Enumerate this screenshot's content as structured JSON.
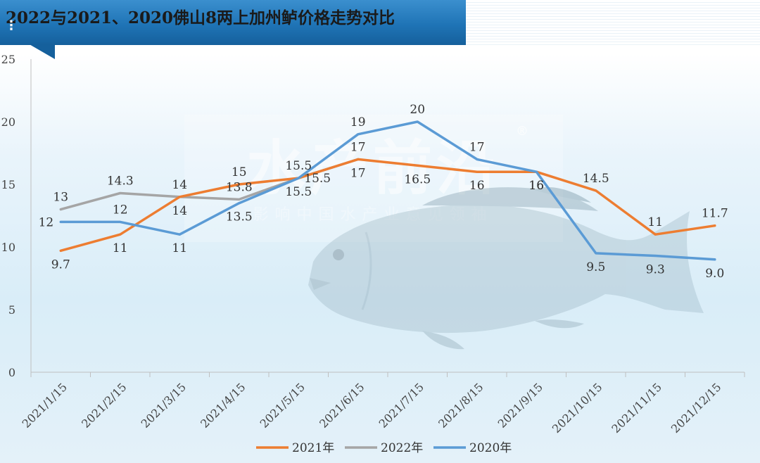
{
  "header": {
    "title": "2022与2021、2020佛山8两上加州鲈价格走势对比",
    "menu_glyph": "⋮"
  },
  "watermark": {
    "brand": "水产前沿",
    "registered": "®",
    "slogan": "影响中国水产业意见领袖",
    "image": "largemouth-bass-photo"
  },
  "colors": {
    "2021": "#ED7D31",
    "2022": "#A5A5A5",
    "2020": "#5B9BD5",
    "banner": "#1f74b6"
  },
  "chart_data": {
    "type": "line",
    "title": "2022与2021、2020佛山8两上加州鲈价格走势对比",
    "xlabel": "",
    "ylabel": "",
    "ylim": [
      0,
      25
    ],
    "yticks": [
      0,
      5,
      10,
      15,
      20,
      25
    ],
    "grid": false,
    "legend_position": "bottom",
    "categories": [
      "2021/1/15",
      "2021/2/15",
      "2021/3/15",
      "2021/4/15",
      "2021/5/15",
      "2021/6/15",
      "2021/7/15",
      "2021/8/15",
      "2021/9/15",
      "2021/10/15",
      "2021/11/15",
      "2021/12/15"
    ],
    "series": [
      {
        "name": "2021年",
        "color": "#ED7D31",
        "values": [
          9.7,
          11,
          14,
          15,
          15.5,
          17,
          16.5,
          16,
          16,
          14.5,
          11,
          11.7
        ],
        "labels": [
          "9.7",
          "11",
          "14",
          "15",
          "15.5",
          "17",
          "16.5",
          "16",
          "16",
          "14.5",
          "11",
          "11.7"
        ],
        "label_pos": [
          "below",
          "below",
          "above",
          "above",
          "above",
          "above",
          "below",
          "below",
          "below",
          "above",
          "above",
          "above"
        ]
      },
      {
        "name": "2022年",
        "color": "#A5A5A5",
        "values": [
          13,
          14.3,
          14,
          13.8,
          15.5,
          17,
          null,
          null,
          null,
          null,
          null,
          null
        ],
        "labels": [
          "13",
          "14.3",
          "14",
          "13.8",
          "15.5",
          "17",
          "",
          "",
          "",
          "",
          "",
          ""
        ],
        "label_pos": [
          "above",
          "above",
          "below",
          "above",
          "right",
          "below",
          "above",
          "above",
          "above",
          "above",
          "above",
          "above"
        ]
      },
      {
        "name": "2020年",
        "color": "#5B9BD5",
        "values": [
          12,
          12,
          11,
          13.5,
          15.5,
          19,
          20,
          17,
          16,
          9.5,
          9.3,
          9.0
        ],
        "labels": [
          "12",
          "12",
          "11",
          "13.5",
          "15.5",
          "19",
          "20",
          "17",
          "16",
          "9.5",
          "9.3",
          "9.0"
        ],
        "label_pos": [
          "left",
          "above",
          "below",
          "below",
          "below",
          "above",
          "above",
          "above",
          "below",
          "below",
          "below",
          "below"
        ]
      }
    ]
  }
}
